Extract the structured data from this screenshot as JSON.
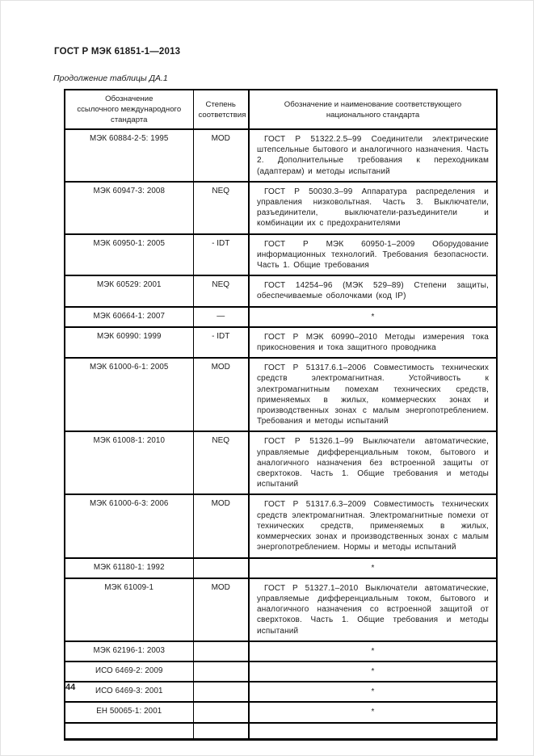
{
  "page": {
    "doc_code": "ГОСТ Р МЭК 61851-1—2013",
    "table_caption": "Продолжение таблицы ДА.1",
    "page_number": "44"
  },
  "colors": {
    "ink": "#1c1c1c",
    "paper": "#ffffff",
    "border": "#000000"
  },
  "table": {
    "headers": [
      "Обозначение\nссылочного международного\nстандарта",
      "Степень\nсоответствия",
      "Обозначение и наименование соответствующего\nнационального стандарта"
    ],
    "rows": [
      {
        "designation": "МЭК 60884-2-5: 1995",
        "degree": "MOD",
        "national": "ГОСТ Р 51322.2.5–99 Соединители электрические штепсельные бытового и аналогичного назначения. Часть 2. Дополнительные требования к переходникам (адаптерам) и методы испытаний"
      },
      {
        "designation": "МЭК 60947-3: 2008",
        "degree": "NEQ",
        "national": "ГОСТ Р 50030.3–99 Аппаратура распределения и управления низковольтная. Часть 3. Выключатели, разъединители, выключатели-разъединители и комбинации их с предохранителями"
      },
      {
        "designation": "МЭК 60950-1: 2005",
        "degree": "- IDT",
        "national": "ГОСТ Р МЭК 60950-1–2009 Оборудование информационных технологий. Требования безопасности. Часть 1. Общие требования"
      },
      {
        "designation": "МЭК 60529: 2001",
        "degree": "NEQ",
        "national": "ГОСТ 14254–96 (МЭК 529–89) Степени защиты, обеспечиваемые оболочками (код IP)"
      },
      {
        "designation": "МЭК 60664-1: 2007",
        "degree": "—",
        "national": "*"
      },
      {
        "designation": "МЭК 60990: 1999",
        "degree": "- IDT",
        "national": "ГОСТ Р МЭК 60990–2010 Методы измерения тока прикосновения и тока защитного проводника"
      },
      {
        "designation": "МЭК 61000-6-1: 2005",
        "degree": "MOD",
        "national": "ГОСТ Р 51317.6.1–2006 Совместимость технических средств электромагнитная. Устойчивость к электромагнитным помехам технических средств, применяемых в жилых, коммерческих зонах и производственных зонах с малым энергопотреблением. Требования и методы испытаний"
      },
      {
        "designation": "МЭК 61008-1: 2010",
        "degree": "NEQ",
        "national": "ГОСТ Р 51326.1–99 Выключатели автоматические, управляемые дифференциальным током, бытового и аналогичного назначения без встроенной защиты от сверхтоков. Часть 1. Общие требования и методы испытаний"
      },
      {
        "designation": "МЭК 61000-6-3: 2006",
        "degree": "MOD",
        "national": "ГОСТ Р 51317.6.3–2009 Совместимость технических средств электромагнитная. Электромагнитные помехи от технических средств, применяемых в жилых, коммерческих зонах и производственных зонах с малым энергопотреблением. Нормы и методы испытаний"
      },
      {
        "designation": "МЭК 61180-1: 1992",
        "degree": "",
        "national": "*"
      },
      {
        "designation": "МЭК 61009-1",
        "degree": "MOD",
        "national": "ГОСТ Р 51327.1–2010 Выключатели автоматические, управляемые дифференциальным током, бытового и аналогичного назначения со встроенной защитой от сверхтоков. Часть 1. Общие требования и методы испытаний"
      },
      {
        "designation": "МЭК 62196-1: 2003",
        "degree": "",
        "national": "*"
      },
      {
        "designation": "ИСО 6469-2: 2009",
        "degree": "",
        "national": "*"
      },
      {
        "designation": "ИСО 6469-3: 2001",
        "degree": "",
        "national": "*"
      },
      {
        "designation": "ЕН 50065-1: 2001",
        "degree": "",
        "national": "*"
      },
      {
        "designation": "",
        "degree": "",
        "national": ""
      }
    ]
  }
}
